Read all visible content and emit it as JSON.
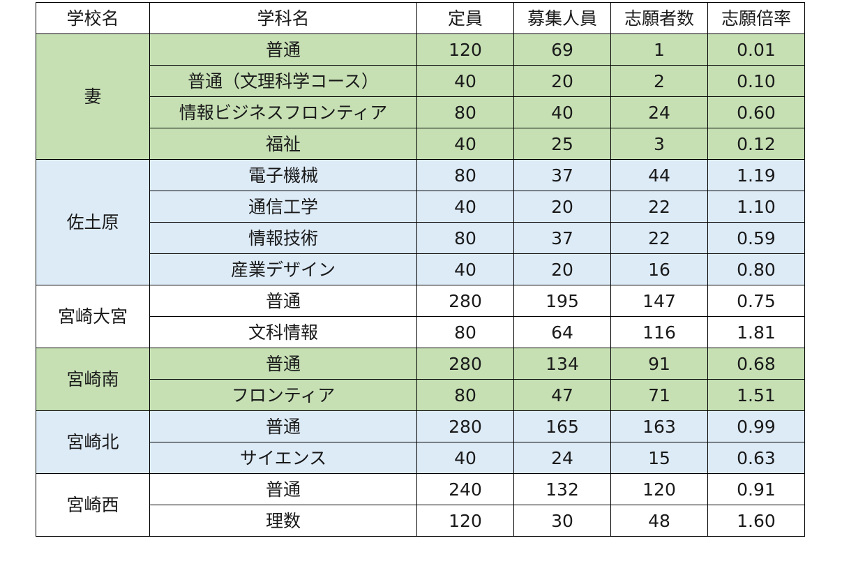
{
  "headers": [
    "学校名",
    "学科名",
    "定員",
    "募集人員",
    "志願者数",
    "志願倍率"
  ],
  "schools": [
    {
      "name": "妻",
      "color": "#c6e0b4",
      "rows": [
        {
          "dept": "普通",
          "capacity": "120",
          "recruit": "69",
          "applicants": "1",
          "ratio": "0.01"
        },
        {
          "dept": "普通（文理科学コース）",
          "capacity": "40",
          "recruit": "20",
          "applicants": "2",
          "ratio": "0.10"
        },
        {
          "dept": "情報ビジネスフロンティア",
          "capacity": "80",
          "recruit": "40",
          "applicants": "24",
          "ratio": "0.60"
        },
        {
          "dept": "福祉",
          "capacity": "40",
          "recruit": "25",
          "applicants": "3",
          "ratio": "0.12"
        }
      ]
    },
    {
      "name": "佐土原",
      "color": "#ddebf7",
      "rows": [
        {
          "dept": "電子機械",
          "capacity": "80",
          "recruit": "37",
          "applicants": "44",
          "ratio": "1.19"
        },
        {
          "dept": "通信工学",
          "capacity": "40",
          "recruit": "20",
          "applicants": "22",
          "ratio": "1.10"
        },
        {
          "dept": "情報技術",
          "capacity": "80",
          "recruit": "37",
          "applicants": "22",
          "ratio": "0.59"
        },
        {
          "dept": "産業デザイン",
          "capacity": "40",
          "recruit": "20",
          "applicants": "16",
          "ratio": "0.80"
        }
      ]
    },
    {
      "name": "宮崎大宮",
      "color": "#ffffff",
      "rows": [
        {
          "dept": "普通",
          "capacity": "280",
          "recruit": "195",
          "applicants": "147",
          "ratio": "0.75"
        },
        {
          "dept": "文科情報",
          "capacity": "80",
          "recruit": "64",
          "applicants": "116",
          "ratio": "1.81"
        }
      ]
    },
    {
      "name": "宮崎南",
      "color": "#c6e0b4",
      "rows": [
        {
          "dept": "普通",
          "capacity": "280",
          "recruit": "134",
          "applicants": "91",
          "ratio": "0.68"
        },
        {
          "dept": "フロンティア",
          "capacity": "80",
          "recruit": "47",
          "applicants": "71",
          "ratio": "1.51"
        }
      ]
    },
    {
      "name": "宮崎北",
      "color": "#ddebf7",
      "rows": [
        {
          "dept": "普通",
          "capacity": "280",
          "recruit": "165",
          "applicants": "163",
          "ratio": "0.99"
        },
        {
          "dept": "サイエンス",
          "capacity": "40",
          "recruit": "24",
          "applicants": "15",
          "ratio": "0.63"
        }
      ]
    },
    {
      "name": "宮崎西",
      "color": "#ffffff",
      "rows": [
        {
          "dept": "普通",
          "capacity": "240",
          "recruit": "132",
          "applicants": "120",
          "ratio": "0.91"
        },
        {
          "dept": "理数",
          "capacity": "120",
          "recruit": "30",
          "applicants": "48",
          "ratio": "1.60"
        }
      ]
    }
  ]
}
